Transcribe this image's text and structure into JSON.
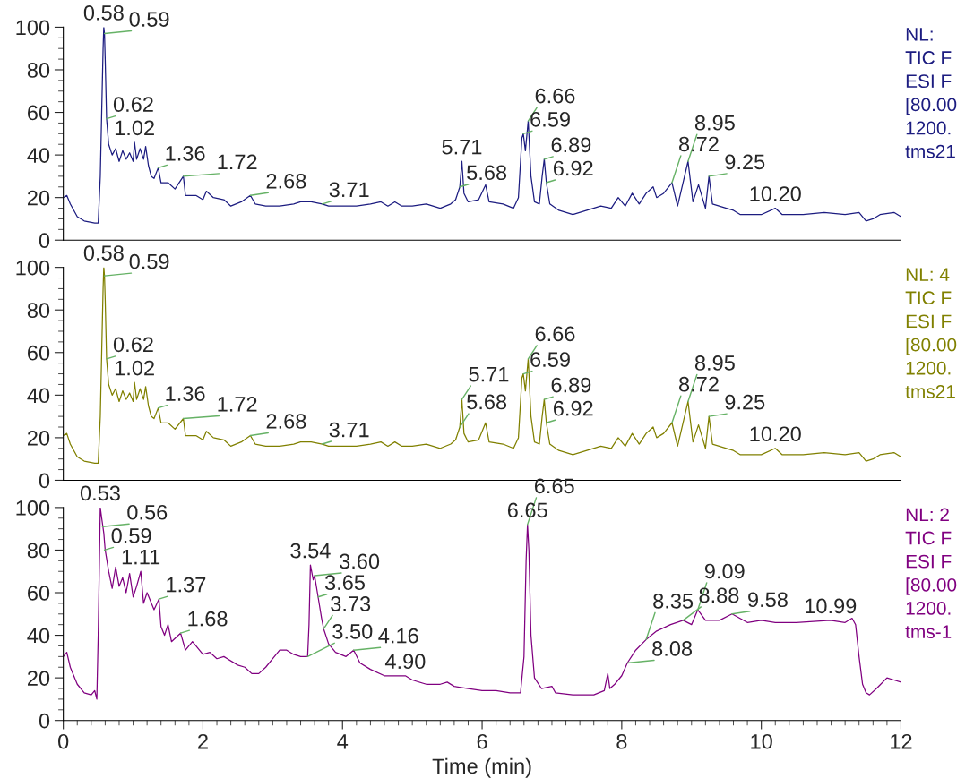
{
  "chart_data": [
    {
      "type": "line",
      "xlim": [
        0,
        12
      ],
      "ylim": [
        0,
        100
      ],
      "yticks": [
        0,
        20,
        40,
        60,
        80,
        100
      ],
      "tick_labels": "y",
      "series": [
        {
          "color": "#1c1c80",
          "x": [
            0,
            0.05,
            0.1,
            0.2,
            0.3,
            0.45,
            0.5,
            0.53,
            0.55,
            0.57,
            0.58,
            0.59,
            0.6,
            0.62,
            0.65,
            0.7,
            0.75,
            0.8,
            0.85,
            0.9,
            0.95,
            1.0,
            1.02,
            1.05,
            1.1,
            1.15,
            1.18,
            1.22,
            1.26,
            1.3,
            1.36,
            1.4,
            1.5,
            1.6,
            1.72,
            1.75,
            1.9,
            2.0,
            2.05,
            2.15,
            2.3,
            2.4,
            2.55,
            2.68,
            2.75,
            2.9,
            3.1,
            3.3,
            3.4,
            3.55,
            3.71,
            3.8,
            4.0,
            4.2,
            4.4,
            4.55,
            4.65,
            4.75,
            4.85,
            5.0,
            5.2,
            5.4,
            5.55,
            5.62,
            5.68,
            5.71,
            5.74,
            5.8,
            5.95,
            6.05,
            6.1,
            6.3,
            6.45,
            6.52,
            6.57,
            6.59,
            6.62,
            6.66,
            6.7,
            6.75,
            6.82,
            6.86,
            6.89,
            6.92,
            6.97,
            7.1,
            7.3,
            7.5,
            7.7,
            7.85,
            7.95,
            8.05,
            8.15,
            8.25,
            8.35,
            8.45,
            8.5,
            8.6,
            8.72,
            8.8,
            8.95,
            9.02,
            9.1,
            9.2,
            9.25,
            9.3,
            9.5,
            9.6,
            9.7,
            10.0,
            10.2,
            10.3,
            10.6,
            10.9,
            11.2,
            11.4,
            11.5,
            11.6,
            11.7,
            11.9,
            12.0
          ],
          "values": [
            20,
            21,
            17,
            11,
            9,
            8,
            8,
            30,
            60,
            90,
            100,
            97,
            85,
            57,
            45,
            40,
            43,
            37,
            42,
            38,
            41,
            37,
            46,
            38,
            43,
            38,
            44,
            35,
            30,
            29,
            34,
            27,
            27,
            24,
            30,
            21,
            21,
            19,
            23,
            20,
            19,
            16,
            18,
            21,
            17,
            16,
            16,
            17,
            18,
            18,
            17,
            16,
            16,
            16,
            17,
            18,
            16,
            18,
            16,
            16,
            17,
            15,
            17,
            19,
            25,
            37,
            22,
            18,
            19,
            26,
            18,
            17,
            15,
            20,
            48,
            50,
            42,
            56,
            30,
            18,
            17,
            30,
            38,
            27,
            17,
            14,
            12,
            14,
            16,
            15,
            20,
            16,
            22,
            17,
            22,
            25,
            20,
            22,
            27,
            16,
            37,
            18,
            26,
            15,
            30,
            17,
            15,
            14,
            12,
            12,
            15,
            12,
            12,
            13,
            12,
            13,
            9,
            10,
            12,
            13,
            11
          ]
        }
      ],
      "annotations": [
        {
          "text": "0.58",
          "x": 0.58,
          "y": 100
        },
        {
          "text": "0.59",
          "x": 0.59,
          "y": 97
        },
        {
          "text": "0.62",
          "x": 0.62,
          "y": 57
        },
        {
          "text": "1.02",
          "x": 1.02,
          "y": 46
        },
        {
          "text": "1.36",
          "x": 1.36,
          "y": 34
        },
        {
          "text": "1.72",
          "x": 1.72,
          "y": 30
        },
        {
          "text": "2.68",
          "x": 2.68,
          "y": 21
        },
        {
          "text": "3.71",
          "x": 3.71,
          "y": 17
        },
        {
          "text": "5.68",
          "x": 5.68,
          "y": 25
        },
        {
          "text": "5.71",
          "x": 5.71,
          "y": 37
        },
        {
          "text": "6.59",
          "x": 6.59,
          "y": 50
        },
        {
          "text": "6.66",
          "x": 6.66,
          "y": 56
        },
        {
          "text": "6.89",
          "x": 6.89,
          "y": 38
        },
        {
          "text": "6.92",
          "x": 6.92,
          "y": 27
        },
        {
          "text": "8.72",
          "x": 8.72,
          "y": 27
        },
        {
          "text": "8.95",
          "x": 8.95,
          "y": 37
        },
        {
          "text": "9.25",
          "x": 9.25,
          "y": 30
        },
        {
          "text": "10.20",
          "x": 10.2,
          "y": 15
        },
        "NL:",
        "TIC F",
        "ESI F",
        "[80.00",
        "1200.",
        "tms21"
      ]
    },
    {
      "type": "line",
      "xlim": [
        0,
        12
      ],
      "ylim": [
        0,
        100
      ],
      "yticks": [
        0,
        20,
        40,
        60,
        80,
        100
      ],
      "tick_labels": "y",
      "series": [
        {
          "color": "#808000",
          "x": [
            0,
            0.05,
            0.1,
            0.2,
            0.3,
            0.45,
            0.5,
            0.53,
            0.55,
            0.57,
            0.58,
            0.59,
            0.6,
            0.62,
            0.65,
            0.7,
            0.75,
            0.8,
            0.85,
            0.9,
            0.95,
            1.0,
            1.02,
            1.05,
            1.1,
            1.15,
            1.18,
            1.22,
            1.26,
            1.3,
            1.36,
            1.4,
            1.5,
            1.6,
            1.72,
            1.75,
            1.9,
            2.0,
            2.05,
            2.15,
            2.3,
            2.4,
            2.55,
            2.68,
            2.75,
            2.9,
            3.1,
            3.3,
            3.4,
            3.55,
            3.71,
            3.8,
            4.0,
            4.2,
            4.4,
            4.55,
            4.65,
            4.75,
            4.85,
            5.0,
            5.2,
            5.4,
            5.55,
            5.62,
            5.68,
            5.71,
            5.74,
            5.8,
            5.95,
            6.05,
            6.1,
            6.3,
            6.45,
            6.52,
            6.57,
            6.59,
            6.62,
            6.66,
            6.7,
            6.75,
            6.82,
            6.86,
            6.89,
            6.92,
            6.97,
            7.1,
            7.3,
            7.5,
            7.7,
            7.85,
            7.95,
            8.05,
            8.15,
            8.25,
            8.35,
            8.45,
            8.5,
            8.6,
            8.72,
            8.8,
            8.95,
            9.02,
            9.1,
            9.2,
            9.25,
            9.3,
            9.5,
            9.6,
            9.7,
            10.0,
            10.2,
            10.3,
            10.6,
            10.9,
            11.2,
            11.4,
            11.5,
            11.6,
            11.7,
            11.9,
            12.0
          ],
          "values": [
            21,
            22,
            17,
            11,
            9,
            8,
            8,
            30,
            60,
            90,
            100,
            96,
            85,
            57,
            45,
            40,
            43,
            37,
            42,
            38,
            41,
            37,
            46,
            38,
            43,
            38,
            44,
            35,
            30,
            29,
            34,
            27,
            27,
            24,
            29,
            21,
            21,
            19,
            23,
            20,
            19,
            16,
            18,
            21,
            17,
            16,
            16,
            17,
            18,
            18,
            17,
            16,
            16,
            16,
            17,
            18,
            16,
            18,
            16,
            16,
            17,
            15,
            17,
            19,
            25,
            38,
            22,
            18,
            19,
            27,
            18,
            17,
            15,
            20,
            48,
            50,
            42,
            57,
            30,
            18,
            17,
            30,
            38,
            27,
            17,
            14,
            12,
            14,
            16,
            15,
            20,
            16,
            22,
            17,
            22,
            25,
            20,
            22,
            27,
            16,
            37,
            18,
            26,
            15,
            30,
            17,
            15,
            14,
            12,
            12,
            15,
            12,
            12,
            13,
            12,
            13,
            9,
            10,
            12,
            13,
            11
          ]
        }
      ],
      "annotations": [
        {
          "text": "0.58",
          "x": 0.58,
          "y": 100
        },
        {
          "text": "0.59",
          "x": 0.59,
          "y": 96
        },
        {
          "text": "0.62",
          "x": 0.62,
          "y": 57
        },
        {
          "text": "1.02",
          "x": 1.02,
          "y": 46
        },
        {
          "text": "1.36",
          "x": 1.36,
          "y": 34
        },
        {
          "text": "1.72",
          "x": 1.72,
          "y": 29
        },
        {
          "text": "2.68",
          "x": 2.68,
          "y": 21
        },
        {
          "text": "3.71",
          "x": 3.71,
          "y": 17
        },
        {
          "text": "5.68",
          "x": 5.68,
          "y": 25
        },
        {
          "text": "5.71",
          "x": 5.71,
          "y": 38
        },
        {
          "text": "6.59",
          "x": 6.59,
          "y": 50
        },
        {
          "text": "6.66",
          "x": 6.66,
          "y": 57
        },
        {
          "text": "6.89",
          "x": 6.89,
          "y": 38
        },
        {
          "text": "6.92",
          "x": 6.92,
          "y": 27
        },
        {
          "text": "8.72",
          "x": 8.72,
          "y": 27
        },
        {
          "text": "8.95",
          "x": 8.95,
          "y": 37
        },
        {
          "text": "9.25",
          "x": 9.25,
          "y": 30
        },
        {
          "text": "10.20",
          "x": 10.2,
          "y": 15
        },
        "NL: 4",
        "TIC F",
        "ESI F",
        "[80.00",
        "1200.",
        "tms21"
      ]
    },
    {
      "type": "line",
      "xlim": [
        0,
        12
      ],
      "ylim": [
        0,
        100
      ],
      "yticks": [
        0,
        20,
        40,
        60,
        80,
        100
      ],
      "xticks": [
        0,
        2,
        4,
        6,
        8,
        10,
        12
      ],
      "xlabel": "Time (min)",
      "series": [
        {
          "color": "#800080",
          "x": [
            0,
            0.05,
            0.1,
            0.2,
            0.3,
            0.4,
            0.45,
            0.48,
            0.5,
            0.52,
            0.53,
            0.55,
            0.58,
            0.6,
            0.65,
            0.7,
            0.75,
            0.8,
            0.85,
            0.9,
            0.95,
            1.0,
            1.05,
            1.11,
            1.15,
            1.2,
            1.3,
            1.37,
            1.4,
            1.45,
            1.5,
            1.55,
            1.68,
            1.75,
            1.85,
            2.0,
            2.1,
            2.2,
            2.3,
            2.5,
            2.6,
            2.7,
            2.8,
            2.9,
            3.0,
            3.1,
            3.2,
            3.3,
            3.4,
            3.5,
            3.52,
            3.54,
            3.58,
            3.6,
            3.65,
            3.7,
            3.73,
            3.8,
            3.9,
            4.05,
            4.16,
            4.25,
            4.4,
            4.6,
            4.8,
            4.9,
            5.0,
            5.2,
            5.4,
            5.5,
            5.6,
            5.8,
            6.0,
            6.2,
            6.4,
            6.55,
            6.6,
            6.63,
            6.65,
            6.67,
            6.7,
            6.75,
            6.85,
            7.0,
            7.05,
            7.3,
            7.6,
            7.75,
            7.8,
            7.83,
            7.9,
            8.0,
            8.08,
            8.2,
            8.35,
            8.5,
            8.7,
            8.88,
            9.0,
            9.09,
            9.2,
            9.4,
            9.58,
            9.8,
            10.0,
            10.2,
            10.5,
            10.99,
            11.2,
            11.3,
            11.35,
            11.4,
            11.45,
            11.5,
            11.55,
            11.65,
            11.8,
            11.9,
            12.0
          ],
          "values": [
            30,
            32,
            25,
            17,
            13,
            12,
            14,
            10,
            40,
            80,
            100,
            95,
            88,
            80,
            70,
            62,
            72,
            63,
            67,
            60,
            69,
            58,
            63,
            70,
            55,
            60,
            52,
            57,
            44,
            40,
            45,
            37,
            41,
            33,
            37,
            31,
            32,
            29,
            30,
            26,
            25,
            22,
            22,
            25,
            29,
            33,
            33,
            31,
            30,
            30,
            45,
            73,
            66,
            68,
            58,
            48,
            43,
            36,
            32,
            30,
            33,
            27,
            24,
            21,
            21,
            21,
            19,
            17,
            17,
            18,
            16,
            15,
            14,
            14,
            13,
            13,
            30,
            75,
            92,
            80,
            40,
            20,
            15,
            16,
            13,
            12,
            12,
            14,
            22,
            15,
            17,
            21,
            27,
            33,
            38,
            42,
            45,
            47,
            45,
            52,
            47,
            47,
            50,
            46,
            47,
            46,
            46,
            47,
            46,
            48,
            45,
            30,
            17,
            13,
            12,
            15,
            20,
            19,
            18
          ]
        }
      ],
      "annotations": [
        {
          "text": "0.53",
          "x": 0.53,
          "y": 100
        },
        {
          "text": "0.56",
          "x": 0.56,
          "y": 91
        },
        {
          "text": "0.59",
          "x": 0.59,
          "y": 80
        },
        {
          "text": "1.11",
          "x": 1.11,
          "y": 70
        },
        {
          "text": "1.37",
          "x": 1.37,
          "y": 57
        },
        {
          "text": "1.68",
          "x": 1.68,
          "y": 41
        },
        {
          "text": "3.50",
          "x": 3.5,
          "y": 30
        },
        {
          "text": "3.54",
          "x": 3.54,
          "y": 73
        },
        {
          "text": "3.60",
          "x": 3.6,
          "y": 68
        },
        {
          "text": "3.65",
          "x": 3.65,
          "y": 58
        },
        {
          "text": "3.73",
          "x": 3.73,
          "y": 43
        },
        {
          "text": "4.16",
          "x": 4.16,
          "y": 33
        },
        {
          "text": "4.90",
          "x": 4.9,
          "y": 21
        },
        {
          "text": "6.65",
          "x": 6.65,
          "y": 92
        },
        {
          "text": "6.65",
          "x": 6.65,
          "y": 92
        },
        {
          "text": "8.08",
          "x": 8.08,
          "y": 27
        },
        {
          "text": "8.35",
          "x": 8.35,
          "y": 38
        },
        {
          "text": "8.88",
          "x": 8.88,
          "y": 47
        },
        {
          "text": "9.09",
          "x": 9.09,
          "y": 52
        },
        {
          "text": "9.58",
          "x": 9.58,
          "y": 50
        },
        {
          "text": "10.99",
          "x": 10.99,
          "y": 47
        },
        "NL: 2",
        "TIC F",
        "ESI F",
        "[80.00",
        "1200.",
        "tms-1"
      ]
    }
  ]
}
